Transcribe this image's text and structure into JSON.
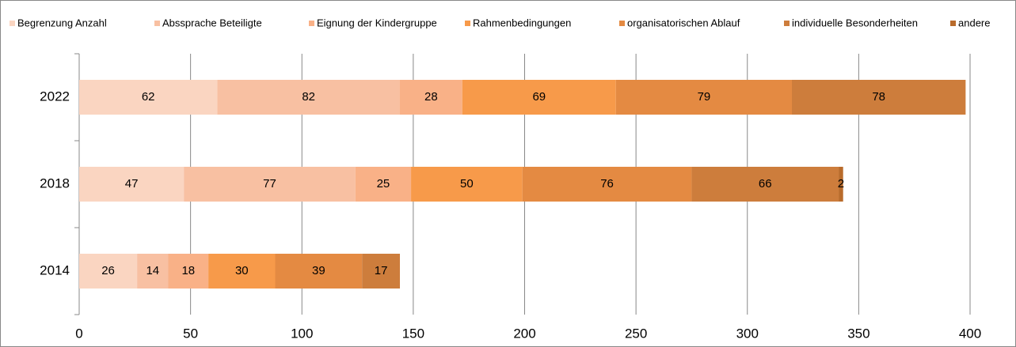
{
  "chart_data": {
    "type": "bar",
    "orientation": "horizontal",
    "stacked": true,
    "categories": [
      "2022",
      "2018",
      "2014"
    ],
    "series": [
      {
        "name": "Begrenzung Anzahl",
        "color": "#fad5c1",
        "values": [
          62,
          47,
          26
        ]
      },
      {
        "name": "Abssprache Beteiligte",
        "color": "#f8c0a2",
        "values": [
          82,
          77,
          14
        ]
      },
      {
        "name": "Eignung der Kindergruppe",
        "color": "#f9b187",
        "values": [
          28,
          25,
          18
        ]
      },
      {
        "name": "Rahmenbedingungen",
        "color": "#f79a4a",
        "values": [
          69,
          50,
          30
        ]
      },
      {
        "name": "organisatorischen Ablauf",
        "color": "#e48a42",
        "values": [
          79,
          76,
          39
        ]
      },
      {
        "name": "individuelle Besonderheiten",
        "color": "#cd7d3c",
        "values": [
          78,
          66,
          17
        ]
      },
      {
        "name": "andere",
        "color": "#b96b2b",
        "values": [
          null,
          2,
          null
        ]
      }
    ],
    "xlim": [
      0,
      400
    ],
    "xticks": [
      0,
      50,
      100,
      150,
      200,
      250,
      300,
      350,
      400
    ],
    "grid": true,
    "legend": "top"
  }
}
